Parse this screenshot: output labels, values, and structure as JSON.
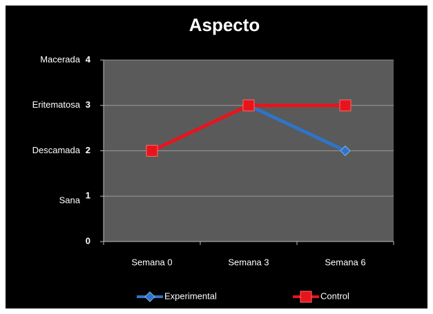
{
  "chart_data": {
    "type": "line",
    "title": "Aspecto",
    "categories": [
      "Semana 0",
      "Semana 3",
      "Semana 6"
    ],
    "series": [
      {
        "name": "Experimental",
        "color": "#2e75c8",
        "marker": "diamond",
        "values": [
          2,
          3,
          2
        ]
      },
      {
        "name": "Control",
        "color": "#e8141c",
        "marker": "square",
        "values": [
          2,
          3,
          3
        ]
      }
    ],
    "ylim": [
      0,
      4
    ],
    "yticks": [
      0,
      1,
      2,
      3,
      4
    ],
    "grid": true,
    "y_annotations": [
      {
        "value": 4,
        "label": "Macerada"
      },
      {
        "value": 3,
        "label": "Eritematosa"
      },
      {
        "value": 2,
        "label": "Descamada"
      },
      {
        "value": 1,
        "label": "Sana"
      }
    ],
    "legend": "bottom"
  }
}
